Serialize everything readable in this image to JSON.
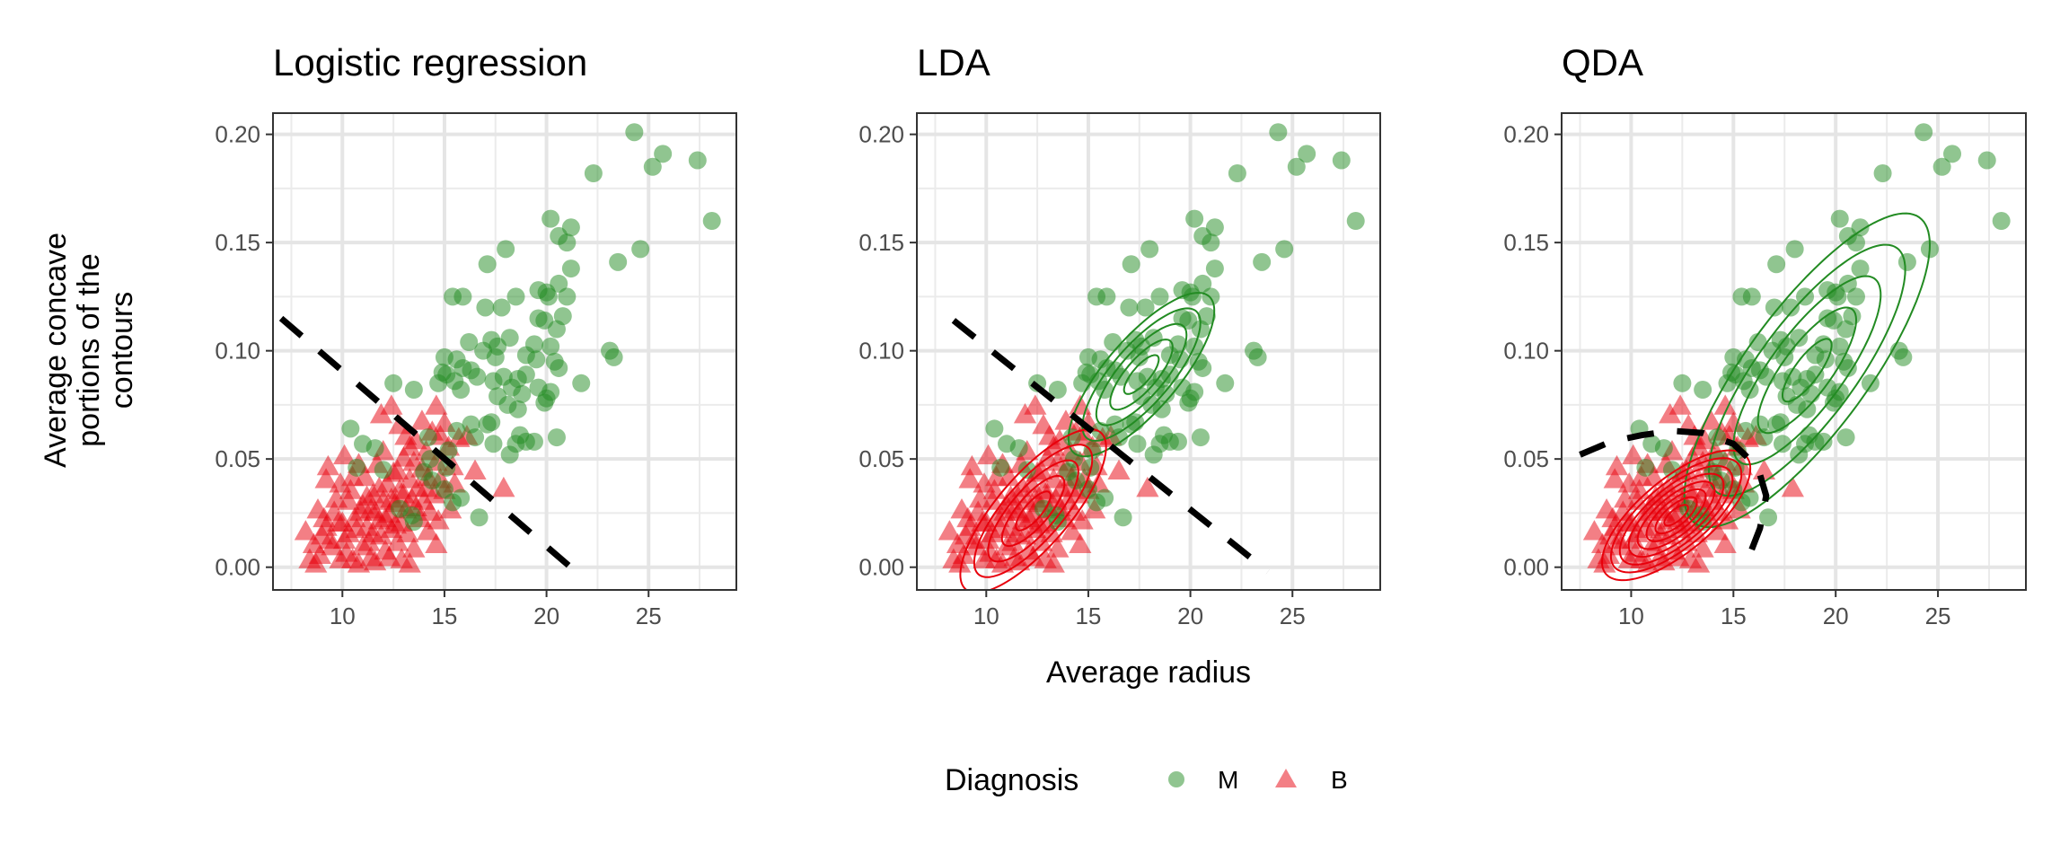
{
  "chart_data": [
    {
      "type": "scatter",
      "title": "Logistic regression",
      "xlim": [
        6.6,
        29.3
      ],
      "ylim": [
        -0.0105,
        0.2098
      ],
      "xticks": [
        10,
        15,
        20,
        25
      ],
      "yticks": [
        0.0,
        0.05,
        0.1,
        0.15,
        0.2
      ],
      "ytick_labels": [
        "0.00",
        "0.05",
        "0.10",
        "0.15",
        "0.20"
      ],
      "grid": true,
      "boundary": {
        "style": "dashed",
        "points": [
          [
            7.0,
            0.115
          ],
          [
            21.8,
            -0.005
          ]
        ]
      }
    },
    {
      "type": "scatter",
      "title": "LDA",
      "xlim": [
        6.6,
        29.3
      ],
      "ylim": [
        -0.0105,
        0.2098
      ],
      "xticks": [
        10,
        15,
        20,
        25
      ],
      "yticks": [
        0.0,
        0.05,
        0.1,
        0.15,
        0.2
      ],
      "ytick_labels": [
        "0.00",
        "0.05",
        "0.10",
        "0.15",
        "0.20"
      ],
      "grid": true,
      "boundary": {
        "style": "dashed",
        "points": [
          [
            8.4,
            0.114
          ],
          [
            23.8,
            -0.002
          ]
        ]
      },
      "contours": [
        {
          "class": "M",
          "center": [
            17.6,
            0.089
          ],
          "sd": [
            1.7,
            0.018
          ],
          "rho": 0.78,
          "levels": [
            0.5,
            0.9,
            1.3,
            1.7,
            2.1
          ]
        },
        {
          "class": "B",
          "center": [
            12.3,
            0.026
          ],
          "sd": [
            1.7,
            0.018
          ],
          "rho": 0.78,
          "levels": [
            0.5,
            0.9,
            1.3,
            1.7,
            2.1
          ]
        }
      ]
    },
    {
      "type": "scatter",
      "title": "QDA",
      "xlim": [
        6.6,
        29.3
      ],
      "ylim": [
        -0.0105,
        0.2098
      ],
      "xticks": [
        10,
        15,
        20,
        25
      ],
      "yticks": [
        0.0,
        0.05,
        0.1,
        0.15,
        0.2
      ],
      "ytick_labels": [
        "0.00",
        "0.05",
        "0.10",
        "0.15",
        "0.20"
      ],
      "grid": true,
      "boundary": {
        "style": "dashed",
        "points": [
          [
            7.5,
            0.052
          ],
          [
            9.0,
            0.058
          ],
          [
            10.5,
            0.061
          ],
          [
            12.0,
            0.063
          ],
          [
            13.5,
            0.062
          ],
          [
            15.0,
            0.057
          ],
          [
            16.2,
            0.046
          ],
          [
            16.6,
            0.033
          ],
          [
            16.3,
            0.018
          ],
          [
            15.6,
            0.001
          ]
        ]
      },
      "contours": [
        {
          "class": "M",
          "center": [
            18.6,
            0.091
          ],
          "sd": [
            2.4,
            0.029
          ],
          "rho": 0.8,
          "levels": [
            0.5,
            1.0,
            1.5,
            2.0,
            2.5
          ]
        },
        {
          "class": "B",
          "center": [
            12.2,
            0.024
          ],
          "sd": [
            1.45,
            0.012
          ],
          "rho": 0.72,
          "levels": [
            0.4,
            0.7,
            1.0,
            1.3,
            1.6,
            1.9,
            2.2,
            2.5
          ]
        }
      ]
    }
  ],
  "shared": {
    "ylabel_lines": [
      "Average concave",
      "portions of the",
      "contours"
    ],
    "xlabel": "Average radius",
    "colors": {
      "M": "#228B22",
      "B": "#E8000B"
    },
    "legend": {
      "title": "Diagnosis",
      "placement": "bottom",
      "items": [
        {
          "label": "M",
          "shape": "circle"
        },
        {
          "label": "B",
          "shape": "triangle"
        }
      ]
    },
    "series": {
      "M": [
        [
          24.3,
          0.201
        ],
        [
          25.7,
          0.191
        ],
        [
          25.2,
          0.185
        ],
        [
          27.4,
          0.188
        ],
        [
          22.3,
          0.182
        ],
        [
          28.1,
          0.16
        ],
        [
          20.2,
          0.161
        ],
        [
          21.2,
          0.157
        ],
        [
          20.6,
          0.153
        ],
        [
          21.0,
          0.15
        ],
        [
          18.0,
          0.147
        ],
        [
          24.6,
          0.147
        ],
        [
          17.1,
          0.14
        ],
        [
          23.5,
          0.141
        ],
        [
          21.2,
          0.138
        ],
        [
          15.4,
          0.125
        ],
        [
          15.9,
          0.125
        ],
        [
          17.0,
          0.12
        ],
        [
          17.8,
          0.12
        ],
        [
          18.5,
          0.125
        ],
        [
          19.6,
          0.128
        ],
        [
          20.0,
          0.127
        ],
        [
          20.1,
          0.125
        ],
        [
          20.6,
          0.131
        ],
        [
          21.0,
          0.125
        ],
        [
          19.6,
          0.115
        ],
        [
          20.8,
          0.116
        ],
        [
          19.9,
          0.114
        ],
        [
          20.5,
          0.11
        ],
        [
          16.2,
          0.104
        ],
        [
          17.3,
          0.105
        ],
        [
          18.2,
          0.106
        ],
        [
          17.6,
          0.102
        ],
        [
          16.9,
          0.1
        ],
        [
          17.5,
          0.097
        ],
        [
          19.4,
          0.103
        ],
        [
          20.2,
          0.102
        ],
        [
          19.0,
          0.098
        ],
        [
          19.5,
          0.096
        ],
        [
          20.4,
          0.095
        ],
        [
          20.6,
          0.092
        ],
        [
          21.7,
          0.085
        ],
        [
          23.1,
          0.1
        ],
        [
          23.3,
          0.097
        ],
        [
          15.0,
          0.097
        ],
        [
          15.6,
          0.096
        ],
        [
          15.9,
          0.092
        ],
        [
          15.1,
          0.089
        ],
        [
          14.9,
          0.09
        ],
        [
          16.3,
          0.091
        ],
        [
          16.6,
          0.088
        ],
        [
          15.5,
          0.086
        ],
        [
          15.8,
          0.082
        ],
        [
          14.7,
          0.085
        ],
        [
          17.4,
          0.086
        ],
        [
          17.9,
          0.088
        ],
        [
          18.6,
          0.087
        ],
        [
          19.0,
          0.089
        ],
        [
          18.3,
          0.083
        ],
        [
          18.8,
          0.08
        ],
        [
          19.6,
          0.083
        ],
        [
          20.2,
          0.081
        ],
        [
          20.0,
          0.078
        ],
        [
          17.6,
          0.079
        ],
        [
          18.1,
          0.075
        ],
        [
          18.6,
          0.073
        ],
        [
          19.9,
          0.076
        ],
        [
          12.5,
          0.085
        ],
        [
          13.5,
          0.082
        ],
        [
          16.3,
          0.066
        ],
        [
          17.1,
          0.066
        ],
        [
          17.3,
          0.067
        ],
        [
          18.7,
          0.061
        ],
        [
          19.4,
          0.058
        ],
        [
          17.4,
          0.057
        ],
        [
          18.5,
          0.057
        ],
        [
          20.5,
          0.06
        ],
        [
          18.2,
          0.052
        ],
        [
          19.0,
          0.058
        ],
        [
          15.6,
          0.063
        ],
        [
          16.5,
          0.06
        ],
        [
          14.2,
          0.06
        ],
        [
          10.4,
          0.064
        ],
        [
          11.0,
          0.057
        ],
        [
          11.6,
          0.055
        ],
        [
          14.3,
          0.05
        ],
        [
          15.1,
          0.046
        ],
        [
          15.0,
          0.036
        ],
        [
          15.4,
          0.03
        ],
        [
          15.8,
          0.032
        ],
        [
          16.7,
          0.023
        ],
        [
          12.8,
          0.027
        ],
        [
          13.4,
          0.024
        ],
        [
          13.5,
          0.021
        ],
        [
          14.4,
          0.04
        ],
        [
          14.0,
          0.044
        ],
        [
          10.7,
          0.046
        ],
        [
          12.0,
          0.045
        ],
        [
          15.2,
          0.054
        ]
      ],
      "B": [
        [
          8.2,
          0.016
        ],
        [
          8.6,
          0.01
        ],
        [
          8.9,
          0.005
        ],
        [
          8.7,
          0.001
        ],
        [
          8.4,
          0.003
        ],
        [
          9.0,
          0.014
        ],
        [
          9.2,
          0.018
        ],
        [
          9.3,
          0.046
        ],
        [
          9.2,
          0.04
        ],
        [
          9.6,
          0.025
        ],
        [
          9.8,
          0.02
        ],
        [
          9.5,
          0.009
        ],
        [
          9.9,
          0.003
        ],
        [
          10.1,
          0.012
        ],
        [
          10.3,
          0.03
        ],
        [
          10.4,
          0.035
        ],
        [
          10.6,
          0.022
        ],
        [
          10.7,
          0.017
        ],
        [
          10.2,
          0.006
        ],
        [
          10.8,
          0.001
        ],
        [
          11.0,
          0.028
        ],
        [
          11.1,
          0.041
        ],
        [
          11.2,
          0.018
        ],
        [
          11.3,
          0.011
        ],
        [
          11.4,
          0.004
        ],
        [
          11.5,
          0.033
        ],
        [
          11.6,
          0.025
        ],
        [
          11.7,
          0.047
        ],
        [
          11.8,
          0.021
        ],
        [
          11.9,
          0.014
        ],
        [
          12.0,
          0.03
        ],
        [
          12.1,
          0.007
        ],
        [
          12.2,
          0.038
        ],
        [
          12.3,
          0.024
        ],
        [
          12.4,
          0.017
        ],
        [
          12.5,
          0.043
        ],
        [
          12.6,
          0.029
        ],
        [
          12.7,
          0.011
        ],
        [
          12.8,
          0.035
        ],
        [
          12.9,
          0.02
        ],
        [
          13.0,
          0.05
        ],
        [
          13.1,
          0.026
        ],
        [
          13.2,
          0.015
        ],
        [
          13.3,
          0.04
        ],
        [
          13.4,
          0.031
        ],
        [
          13.5,
          0.008
        ],
        [
          13.6,
          0.058
        ],
        [
          13.7,
          0.036
        ],
        [
          13.8,
          0.022
        ],
        [
          13.9,
          0.045
        ],
        [
          14.0,
          0.03
        ],
        [
          14.1,
          0.053
        ],
        [
          14.2,
          0.041
        ],
        [
          14.3,
          0.025
        ],
        [
          14.4,
          0.062
        ],
        [
          14.5,
          0.033
        ],
        [
          14.6,
          0.048
        ],
        [
          14.8,
          0.04
        ],
        [
          15.0,
          0.066
        ],
        [
          15.2,
          0.055
        ],
        [
          15.4,
          0.046
        ],
        [
          15.7,
          0.059
        ],
        [
          16.1,
          0.06
        ],
        [
          16.5,
          0.044
        ],
        [
          17.9,
          0.036
        ],
        [
          12.4,
          0.074
        ],
        [
          14.6,
          0.074
        ],
        [
          13.1,
          0.06
        ],
        [
          10.1,
          0.051
        ],
        [
          11.9,
          0.07
        ],
        [
          12.8,
          0.065
        ],
        [
          13.9,
          0.067
        ],
        [
          14.8,
          0.06
        ],
        [
          10.5,
          0.003
        ],
        [
          11.0,
          0.009
        ],
        [
          11.6,
          0.002
        ],
        [
          12.3,
          0.004
        ],
        [
          12.9,
          0.003
        ],
        [
          13.3,
          0.001
        ],
        [
          10.0,
          0.02
        ],
        [
          10.9,
          0.025
        ],
        [
          11.4,
          0.026
        ],
        [
          12.1,
          0.022
        ],
        [
          12.6,
          0.019
        ],
        [
          11.2,
          0.032
        ],
        [
          11.8,
          0.036
        ],
        [
          12.4,
          0.031
        ],
        [
          13.0,
          0.033
        ],
        [
          13.6,
          0.027
        ],
        [
          14.2,
          0.016
        ],
        [
          14.7,
          0.021
        ],
        [
          15.3,
          0.026
        ],
        [
          15.0,
          0.035
        ],
        [
          9.4,
          0.012
        ],
        [
          9.1,
          0.022
        ],
        [
          8.8,
          0.026
        ],
        [
          9.7,
          0.031
        ],
        [
          10.5,
          0.041
        ],
        [
          10.3,
          0.015
        ],
        [
          11.5,
          0.015
        ],
        [
          12.7,
          0.044
        ],
        [
          13.5,
          0.048
        ],
        [
          14.1,
          0.036
        ],
        [
          14.6,
          0.01
        ],
        [
          15.5,
          0.038
        ],
        [
          12.0,
          0.053
        ],
        [
          13.3,
          0.055
        ],
        [
          10.8,
          0.047
        ],
        [
          9.9,
          0.038
        ]
      ]
    }
  }
}
